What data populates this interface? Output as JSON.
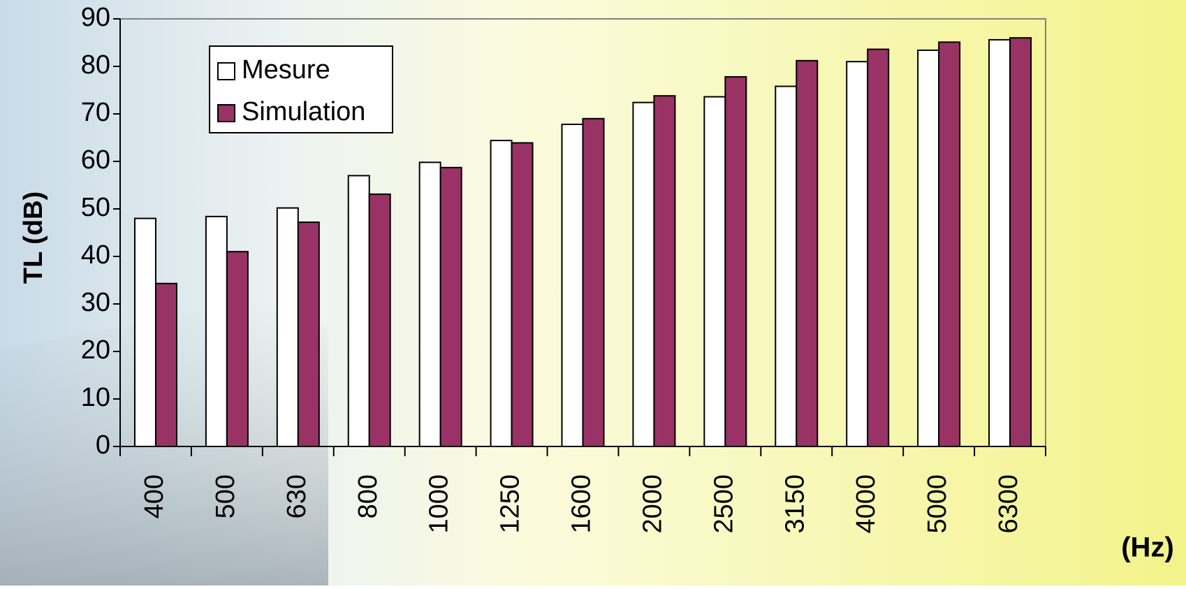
{
  "chart_data": {
    "type": "bar",
    "y_label": "TL (dB)",
    "x_label": "(Hz)",
    "categories": [
      "400",
      "500",
      "630",
      "800",
      "1000",
      "1250",
      "1600",
      "2000",
      "2500",
      "3150",
      "4000",
      "5000",
      "6300"
    ],
    "series": [
      {
        "name": "Mesure",
        "color": "#ffffff",
        "values": [
          48,
          48.4,
          50.2,
          57,
          59.8,
          64.4,
          67.8,
          72.4,
          73.6,
          75.8,
          81,
          83.4,
          85.6
        ]
      },
      {
        "name": "Simulation",
        "color": "#993366",
        "values": [
          34.3,
          41,
          47.2,
          53.1,
          58.7,
          63.9,
          69,
          73.8,
          77.8,
          81.2,
          83.6,
          85.1,
          86
        ]
      }
    ],
    "ylim": [
      0,
      90
    ],
    "yticks": [
      0,
      10,
      20,
      30,
      40,
      50,
      60,
      70,
      80,
      90
    ],
    "legend": "top-left"
  }
}
